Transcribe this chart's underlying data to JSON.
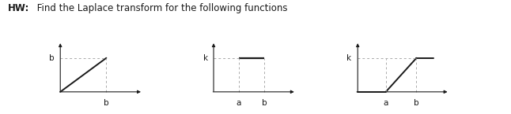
{
  "title_bold": "HW:",
  "title_rest": " Find the Laplace transform for the following functions",
  "title_fontsize": 8.5,
  "graphs": [
    {
      "type": "ramp",
      "label_y": "b",
      "label_x": "b",
      "xlim": [
        -0.2,
        1.8
      ],
      "ylim": [
        -0.25,
        1.5
      ]
    },
    {
      "type": "pulse",
      "label_y": "k",
      "label_xa": "a",
      "label_xb": "b",
      "xlim": [
        -0.2,
        1.8
      ],
      "ylim": [
        -0.25,
        1.5
      ],
      "a": 0.55,
      "b": 1.1,
      "k": 1.0
    },
    {
      "type": "ramp_flat",
      "label_y": "k",
      "label_xa": "a",
      "label_xb": "b",
      "xlim": [
        -0.2,
        1.8
      ],
      "ylim": [
        -0.25,
        1.5
      ],
      "a": 0.55,
      "b": 1.15,
      "k": 1.0
    }
  ],
  "line_color": "#1a1a1a",
  "dash_color": "#aaaaaa",
  "fontsize_label": 7.5,
  "bg_color": "#ffffff"
}
